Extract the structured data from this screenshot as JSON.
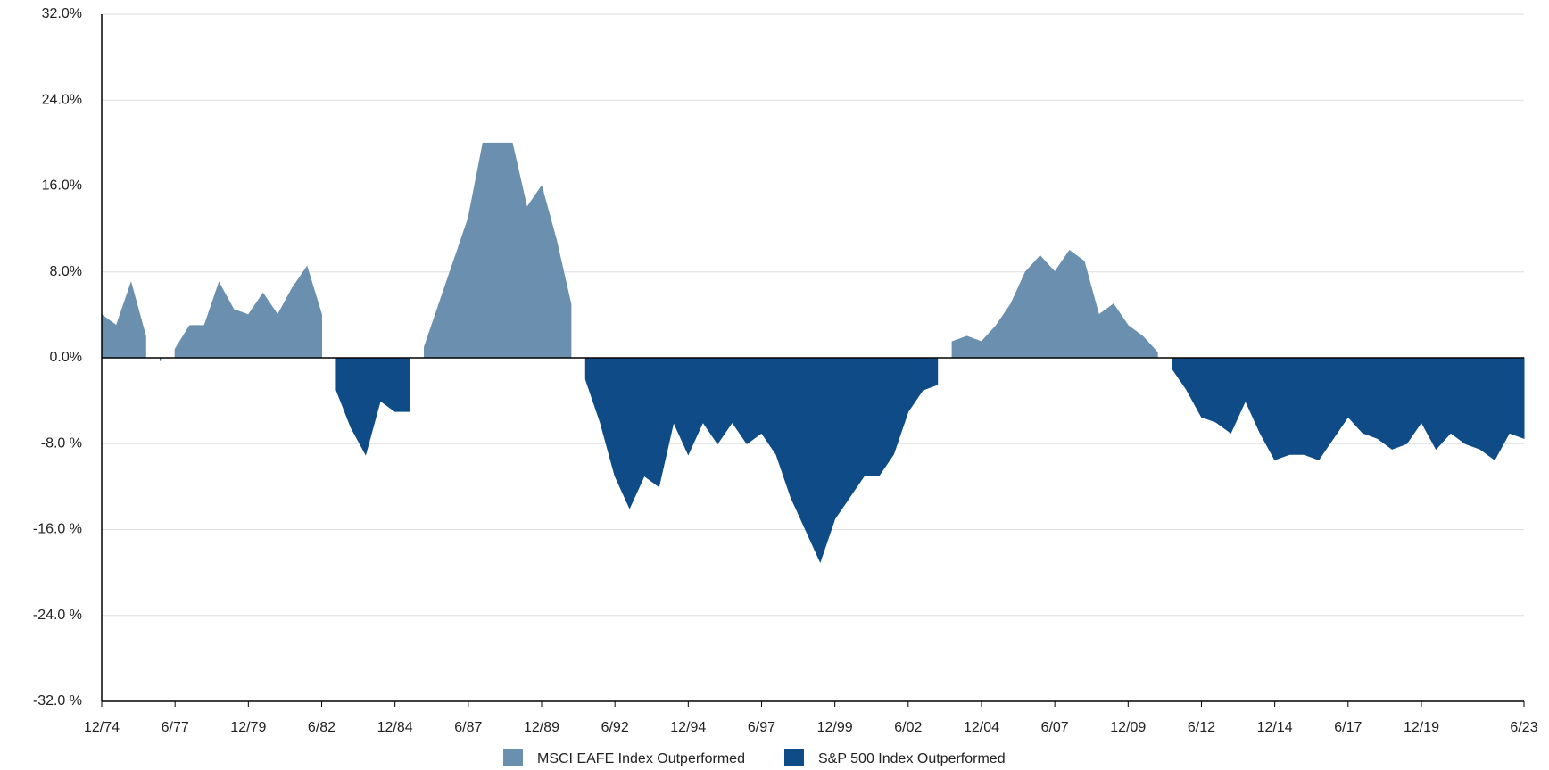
{
  "chart_data": {
    "type": "area",
    "x": [
      "12/74",
      "6/75",
      "12/75",
      "6/76",
      "12/76",
      "6/77",
      "12/77",
      "6/78",
      "12/78",
      "6/79",
      "12/79",
      "6/80",
      "12/80",
      "6/81",
      "12/81",
      "6/82",
      "12/82",
      "6/83",
      "12/83",
      "6/84",
      "12/84",
      "6/85",
      "12/85",
      "6/86",
      "12/86",
      "6/87",
      "12/87",
      "6/88",
      "12/88",
      "6/89",
      "12/89",
      "6/90",
      "12/90",
      "6/91",
      "12/91",
      "6/92",
      "12/92",
      "6/93",
      "12/93",
      "6/94",
      "12/94",
      "6/95",
      "12/95",
      "6/96",
      "12/96",
      "6/97",
      "12/97",
      "6/98",
      "12/98",
      "6/99",
      "12/99",
      "6/00",
      "12/00",
      "6/01",
      "12/01",
      "6/02",
      "12/02",
      "6/03",
      "12/03",
      "6/04",
      "12/04",
      "6/05",
      "12/05",
      "6/06",
      "12/06",
      "6/07",
      "12/07",
      "6/08",
      "12/08",
      "6/09",
      "12/09",
      "6/10",
      "12/10",
      "6/11",
      "12/11",
      "6/12",
      "12/12",
      "6/13",
      "12/13",
      "6/14",
      "12/14",
      "6/15",
      "12/15",
      "6/16",
      "12/16",
      "6/17",
      "12/17",
      "6/18",
      "12/18",
      "6/19",
      "12/19",
      "6/20",
      "12/20",
      "6/21",
      "12/21",
      "6/22",
      "12/22",
      "6/23"
    ],
    "series": [
      {
        "name": "MSCI EAFE Index Outperformed",
        "color": "#6b8fae",
        "values": [
          4,
          3,
          7,
          2,
          null,
          0.8,
          3,
          3,
          7,
          4.5,
          4,
          6,
          4,
          6.5,
          8.5,
          4,
          null,
          null,
          null,
          null,
          null,
          null,
          1,
          5,
          9,
          13,
          20,
          20,
          20,
          14,
          16,
          11,
          5,
          null,
          null,
          null,
          null,
          null,
          null,
          null,
          null,
          null,
          null,
          null,
          null,
          null,
          null,
          null,
          null,
          null,
          null,
          null,
          null,
          null,
          null,
          null,
          null,
          null,
          1.5,
          2,
          1.5,
          3,
          5,
          8,
          9.5,
          8,
          10,
          9,
          4,
          5,
          3,
          2,
          0.5,
          null,
          null,
          null,
          null,
          null,
          null,
          null,
          null,
          null,
          null,
          null,
          null,
          null,
          null,
          null,
          null,
          null,
          null,
          null,
          null,
          null,
          null,
          null,
          null,
          null
        ]
      },
      {
        "name": "S&P 500 Index Outperformed",
        "color": "#0f4c87",
        "values": [
          null,
          null,
          null,
          null,
          -0.3,
          null,
          null,
          null,
          null,
          null,
          null,
          null,
          null,
          null,
          null,
          null,
          -3,
          -6.5,
          -9,
          -4,
          -5,
          -5,
          null,
          null,
          null,
          null,
          null,
          null,
          null,
          null,
          null,
          null,
          null,
          -2,
          -6,
          -11,
          -14,
          -11,
          -12,
          -6,
          -9,
          -6,
          -8,
          -6,
          -8,
          -7,
          -9,
          -13,
          -16,
          -19,
          -15,
          -13,
          -11,
          -11,
          -9,
          -5,
          -3,
          -2.5,
          null,
          null,
          null,
          null,
          null,
          null,
          null,
          null,
          null,
          null,
          null,
          null,
          null,
          null,
          null,
          -1,
          -3,
          -5.5,
          -6,
          -7,
          -4,
          -7,
          -9.5,
          -9,
          -9,
          -9.5,
          -7.5,
          -5.5,
          -7,
          -7.5,
          -8.5,
          -8,
          -6,
          -8.5,
          -7,
          -8,
          -8.5,
          -9.5,
          -7,
          -7.5
        ]
      }
    ],
    "xticks": [
      "12/74",
      "6/77",
      "12/79",
      "6/82",
      "12/84",
      "6/87",
      "12/89",
      "6/92",
      "12/94",
      "6/97",
      "12/99",
      "6/02",
      "12/04",
      "6/07",
      "12/09",
      "6/12",
      "12/14",
      "6/17",
      "12/19",
      "6/23"
    ],
    "ylim": [
      -32,
      32
    ],
    "yticks": [
      {
        "value": -32,
        "label": "-32.0 %"
      },
      {
        "value": -24,
        "label": "-24.0 %"
      },
      {
        "value": -16,
        "label": "-16.0 %"
      },
      {
        "value": -8,
        "label": "-8.0 %"
      },
      {
        "value": 0,
        "label": "0.0%"
      },
      {
        "value": 8,
        "label": "8.0%"
      },
      {
        "value": 16,
        "label": "16.0%"
      },
      {
        "value": 24,
        "label": "24.0%"
      },
      {
        "value": 32,
        "label": "32.0%"
      }
    ],
    "grid": true,
    "legend": "bottom"
  }
}
